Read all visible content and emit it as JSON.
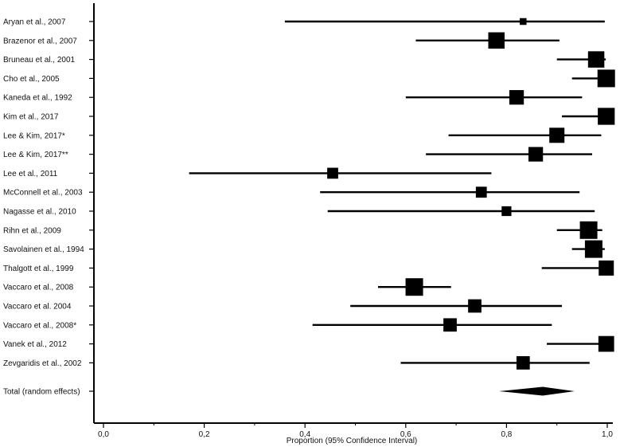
{
  "chart_data": {
    "type": "forest",
    "xlabel": "Proportion (95% Confidence Interval)",
    "xlim": [
      0,
      1
    ],
    "x_ticks": [
      "0,0",
      "0,2",
      "0,4",
      "0,6",
      "0,8",
      "1,0"
    ],
    "x_tick_values": [
      0,
      0.2,
      0.4,
      0.6,
      0.8,
      1.0
    ],
    "studies": [
      {
        "label": "Aryan et al., 2007",
        "estimate": 0.833,
        "lower": 0.36,
        "upper": 0.995,
        "weight": 0.6
      },
      {
        "label": "Brazenor et al., 2007",
        "estimate": 0.78,
        "lower": 0.62,
        "upper": 0.905,
        "weight": 2.2
      },
      {
        "label": "Bruneau et al., 2001",
        "estimate": 0.978,
        "lower": 0.9,
        "upper": 0.997,
        "weight": 2.2
      },
      {
        "label": "Cho et al., 2005",
        "estimate": 0.998,
        "lower": 0.93,
        "upper": 1.0,
        "weight": 2.4
      },
      {
        "label": "Kaneda et al., 1992",
        "estimate": 0.82,
        "lower": 0.6,
        "upper": 0.95,
        "weight": 1.9
      },
      {
        "label": "Kim et al., 2017",
        "estimate": 0.998,
        "lower": 0.91,
        "upper": 1.0,
        "weight": 2.3
      },
      {
        "label": "Lee & Kim, 2017*",
        "estimate": 0.9,
        "lower": 0.685,
        "upper": 0.988,
        "weight": 2.0
      },
      {
        "label": "Lee & Kim, 2017**",
        "estimate": 0.858,
        "lower": 0.64,
        "upper": 0.97,
        "weight": 1.9
      },
      {
        "label": "Lee et al., 2011",
        "estimate": 0.455,
        "lower": 0.17,
        "upper": 0.77,
        "weight": 1.3
      },
      {
        "label": "McConnell et al., 2003",
        "estimate": 0.75,
        "lower": 0.43,
        "upper": 0.945,
        "weight": 1.3
      },
      {
        "label": "Nagasse et al., 2010",
        "estimate": 0.8,
        "lower": 0.445,
        "upper": 0.975,
        "weight": 1.1
      },
      {
        "label": "Rihn et al., 2009",
        "estimate": 0.963,
        "lower": 0.9,
        "upper": 0.99,
        "weight": 2.4
      },
      {
        "label": "Savolainen et al., 1994",
        "estimate": 0.973,
        "lower": 0.93,
        "upper": 0.995,
        "weight": 2.4
      },
      {
        "label": "Thalgott et al., 1999",
        "estimate": 0.998,
        "lower": 0.87,
        "upper": 1.0,
        "weight": 2.0
      },
      {
        "label": "Vaccaro et al., 2008",
        "estimate": 0.617,
        "lower": 0.545,
        "upper": 0.69,
        "weight": 2.4
      },
      {
        "label": "Vaccaro et al. 2004",
        "estimate": 0.737,
        "lower": 0.49,
        "upper": 0.91,
        "weight": 1.7
      },
      {
        "label": "Vaccaro et al., 2008*",
        "estimate": 0.688,
        "lower": 0.415,
        "upper": 0.89,
        "weight": 1.7
      },
      {
        "label": "Vanek et al., 2012",
        "estimate": 0.998,
        "lower": 0.88,
        "upper": 1.0,
        "weight": 2.1
      },
      {
        "label": "Zevgaridis et al., 2002",
        "estimate": 0.833,
        "lower": 0.59,
        "upper": 0.965,
        "weight": 1.7
      }
    ],
    "summary": {
      "label": "Total (random effects)",
      "estimate": 0.872,
      "lower": 0.785,
      "upper": 0.935
    },
    "colors": {
      "marks": "#000000",
      "axis": "#000000",
      "background": "#ffffff"
    },
    "grid": false
  }
}
